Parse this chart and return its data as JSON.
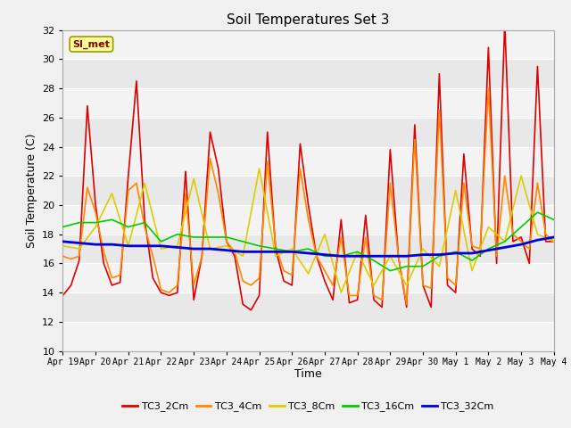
{
  "title": "Soil Temperatures Set 3",
  "xlabel": "Time",
  "ylabel": "Soil Temperature (C)",
  "ylim": [
    10,
    32
  ],
  "bg_color": "#f0f0f0",
  "plot_bg_color": "#e8e8e8",
  "annotation_text": "SI_met",
  "annotation_bg": "#ffff99",
  "annotation_border": "#999900",
  "annotation_text_color": "#880000",
  "series_colors": [
    "#dd0000",
    "#ff8800",
    "#ddcc00",
    "#00cc00",
    "#0000dd"
  ],
  "series_labels": [
    "TC3_2Cm",
    "TC3_4Cm",
    "TC3_8Cm",
    "TC3_16Cm",
    "TC3_32Cm"
  ],
  "x_tick_labels": [
    "Apr 19",
    "Apr 20",
    "Apr 21",
    "Apr 22",
    "Apr 23",
    "Apr 24",
    "Apr 25",
    "Apr 26",
    "Apr 27",
    "Apr 28",
    "Apr 29",
    "Apr 30",
    "May 1",
    "May 2",
    "May 3",
    "May 4"
  ],
  "yticks": [
    10,
    12,
    14,
    16,
    18,
    20,
    22,
    24,
    26,
    28,
    30,
    32
  ],
  "TC3_2Cm_x": [
    0.0,
    0.25,
    0.5,
    0.75,
    1.0,
    1.25,
    1.5,
    1.75,
    2.0,
    2.25,
    2.5,
    2.75,
    3.0,
    3.25,
    3.5,
    3.75,
    4.0,
    4.25,
    4.5,
    4.75,
    5.0,
    5.25,
    5.5,
    5.75,
    6.0,
    6.25,
    6.5,
    6.75,
    7.0,
    7.25,
    7.5,
    7.75,
    8.0,
    8.25,
    8.5,
    8.75,
    9.0,
    9.25,
    9.5,
    9.75,
    10.0,
    10.25,
    10.5,
    10.75,
    11.0,
    11.25,
    11.5,
    11.75,
    12.0,
    12.25,
    12.5,
    12.75,
    13.0,
    13.25,
    13.5,
    13.75,
    14.0,
    14.25,
    14.5,
    14.75,
    15.0
  ],
  "TC3_2Cm_y": [
    13.8,
    14.5,
    16.2,
    26.8,
    20.0,
    16.0,
    14.5,
    14.7,
    22.0,
    28.5,
    19.0,
    15.0,
    14.0,
    13.8,
    14.0,
    22.3,
    13.5,
    16.5,
    25.0,
    22.5,
    17.5,
    16.5,
    13.2,
    12.8,
    13.8,
    25.0,
    17.0,
    14.8,
    14.5,
    24.2,
    20.0,
    16.5,
    14.8,
    13.5,
    19.0,
    13.3,
    13.5,
    19.3,
    13.5,
    13.0,
    23.8,
    16.5,
    13.0,
    25.5,
    14.5,
    13.0,
    29.0,
    14.5,
    14.0,
    23.5,
    17.0,
    16.5,
    30.8,
    16.0,
    32.5,
    17.5,
    17.8,
    16.0,
    29.5,
    17.5,
    17.5
  ],
  "TC3_4Cm_x": [
    0.0,
    0.25,
    0.5,
    0.75,
    1.0,
    1.25,
    1.5,
    1.75,
    2.0,
    2.25,
    2.5,
    2.75,
    3.0,
    3.25,
    3.5,
    3.75,
    4.0,
    4.25,
    4.5,
    4.75,
    5.0,
    5.25,
    5.5,
    5.75,
    6.0,
    6.25,
    6.5,
    6.75,
    7.0,
    7.25,
    7.5,
    7.75,
    8.0,
    8.25,
    8.5,
    8.75,
    9.0,
    9.25,
    9.5,
    9.75,
    10.0,
    10.25,
    10.5,
    10.75,
    11.0,
    11.25,
    11.5,
    11.75,
    12.0,
    12.25,
    12.5,
    12.75,
    13.0,
    13.25,
    13.5,
    13.75,
    14.0,
    14.25,
    14.5,
    14.75,
    15.0
  ],
  "TC3_4Cm_y": [
    16.5,
    16.3,
    16.5,
    21.2,
    19.5,
    16.8,
    15.0,
    15.2,
    21.0,
    21.5,
    18.5,
    16.5,
    14.2,
    14.0,
    14.5,
    20.8,
    14.5,
    16.5,
    23.2,
    20.8,
    17.5,
    16.8,
    14.8,
    14.5,
    15.0,
    23.0,
    17.2,
    15.5,
    15.2,
    22.5,
    19.0,
    16.5,
    15.5,
    14.5,
    17.8,
    13.8,
    13.8,
    17.8,
    13.8,
    13.5,
    21.5,
    16.5,
    13.2,
    24.5,
    14.5,
    14.3,
    26.5,
    15.0,
    14.5,
    21.5,
    17.2,
    17.0,
    28.0,
    16.5,
    22.0,
    18.0,
    17.5,
    17.0,
    21.5,
    18.0,
    17.5
  ],
  "TC3_8Cm_x": [
    0.0,
    0.5,
    1.0,
    1.5,
    2.0,
    2.5,
    3.0,
    3.5,
    4.0,
    4.5,
    5.0,
    5.5,
    6.0,
    6.5,
    7.0,
    7.5,
    8.0,
    8.5,
    9.0,
    9.5,
    10.0,
    10.5,
    11.0,
    11.5,
    12.0,
    12.5,
    13.0,
    13.5,
    14.0,
    14.5,
    15.0
  ],
  "TC3_8Cm_y": [
    17.2,
    17.0,
    18.5,
    20.8,
    17.2,
    21.5,
    17.0,
    17.2,
    21.8,
    17.0,
    17.2,
    16.5,
    22.5,
    16.5,
    17.0,
    15.3,
    18.0,
    14.0,
    16.8,
    14.5,
    16.5,
    14.5,
    17.0,
    15.8,
    21.0,
    15.5,
    18.5,
    17.5,
    22.0,
    18.0,
    17.5
  ],
  "TC3_16Cm_x": [
    0.0,
    0.5,
    1.0,
    1.5,
    2.0,
    2.5,
    3.0,
    3.5,
    4.0,
    4.5,
    5.0,
    5.5,
    6.0,
    6.5,
    7.0,
    7.5,
    8.0,
    8.5,
    9.0,
    9.5,
    10.0,
    10.5,
    11.0,
    11.5,
    12.0,
    12.5,
    13.0,
    13.5,
    14.0,
    14.5,
    15.0
  ],
  "TC3_16Cm_y": [
    18.5,
    18.8,
    18.8,
    19.0,
    18.5,
    18.8,
    17.5,
    18.0,
    17.8,
    17.8,
    17.8,
    17.5,
    17.2,
    17.0,
    16.8,
    17.0,
    16.5,
    16.5,
    16.8,
    16.2,
    15.5,
    15.8,
    15.8,
    16.5,
    16.8,
    16.2,
    17.0,
    17.5,
    18.5,
    19.5,
    19.0
  ],
  "TC3_32Cm_x": [
    0.0,
    0.5,
    1.0,
    1.5,
    2.0,
    2.5,
    3.0,
    3.5,
    4.0,
    4.5,
    5.0,
    5.5,
    6.0,
    6.5,
    7.0,
    7.5,
    8.0,
    8.5,
    9.0,
    9.5,
    10.0,
    10.5,
    11.0,
    11.5,
    12.0,
    12.5,
    13.0,
    13.5,
    14.0,
    14.5,
    15.0
  ],
  "TC3_32Cm_y": [
    17.5,
    17.4,
    17.3,
    17.3,
    17.2,
    17.2,
    17.2,
    17.1,
    17.0,
    17.0,
    16.9,
    16.8,
    16.8,
    16.8,
    16.8,
    16.7,
    16.6,
    16.5,
    16.5,
    16.5,
    16.5,
    16.5,
    16.6,
    16.6,
    16.7,
    16.7,
    16.9,
    17.1,
    17.3,
    17.6,
    17.8
  ]
}
